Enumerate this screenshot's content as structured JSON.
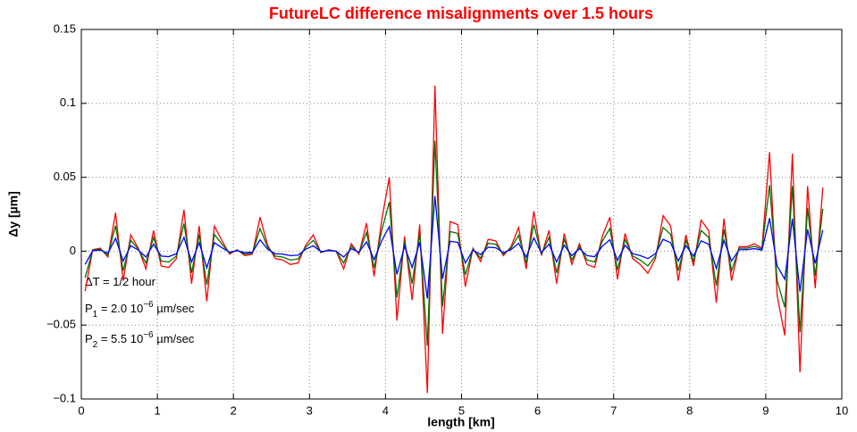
{
  "chart_data": {
    "type": "line",
    "title": "FutureLC difference misalignments over 1.5 hours",
    "xlabel": "length [km]",
    "ylabel": "Δy [µm]",
    "annotations": [
      {
        "text": "ΔT = 1/2 hour"
      },
      {
        "text": "P",
        "sub": "1",
        "mid": " = 2.0 10",
        "sup": "−6",
        "end": " µm/sec"
      },
      {
        "text": "P",
        "sub": "2",
        "mid": " = 5.5 10",
        "sup": "−6",
        "end": " µm/sec"
      }
    ],
    "xlim": [
      0,
      10
    ],
    "ylim": [
      -0.1,
      0.15
    ],
    "xticks": [
      0,
      1,
      2,
      3,
      4,
      5,
      6,
      7,
      8,
      9,
      10
    ],
    "yticks": [
      {
        "value": -0.1,
        "label": "−0.1"
      },
      {
        "value": -0.05,
        "label": "−0.05"
      },
      0,
      0.05,
      0.1,
      0.15
    ],
    "grid": true,
    "x": [
      0.05,
      0.15,
      0.25,
      0.35,
      0.45,
      0.55,
      0.65,
      0.75,
      0.85,
      0.95,
      1.05,
      1.15,
      1.25,
      1.35,
      1.45,
      1.55,
      1.65,
      1.75,
      1.85,
      1.95,
      2.05,
      2.15,
      2.25,
      2.35,
      2.45,
      2.55,
      2.65,
      2.75,
      2.85,
      2.95,
      3.05,
      3.15,
      3.25,
      3.35,
      3.45,
      3.55,
      3.65,
      3.75,
      3.85,
      3.95,
      4.05,
      4.15,
      4.25,
      4.35,
      4.45,
      4.55,
      4.65,
      4.75,
      4.85,
      4.95,
      5.05,
      5.15,
      5.25,
      5.35,
      5.45,
      5.55,
      5.65,
      5.75,
      5.85,
      5.95,
      6.05,
      6.15,
      6.25,
      6.35,
      6.45,
      6.55,
      6.65,
      6.75,
      6.85,
      6.95,
      7.05,
      7.15,
      7.25,
      7.35,
      7.45,
      7.55,
      7.65,
      7.75,
      7.85,
      7.95,
      8.05,
      8.15,
      8.25,
      8.35,
      8.45,
      8.55,
      8.65,
      8.75,
      8.85,
      8.95,
      9.05,
      9.15,
      9.25,
      9.35,
      9.45,
      9.55,
      9.65,
      9.75
    ],
    "series": [
      {
        "color": "#ff0000",
        "values": [
          -0.027,
          0.001,
          0.002,
          -0.004,
          0.026,
          -0.02,
          0.011,
          0.002,
          -0.012,
          0.014,
          -0.01,
          -0.011,
          -0.005,
          0.028,
          -0.022,
          0.017,
          -0.034,
          0.017,
          0.007,
          -0.002,
          0.001,
          -0.003,
          -0.002,
          0.023,
          0.004,
          -0.005,
          -0.006,
          -0.009,
          -0.008,
          0.004,
          0.011,
          -0.001,
          0.001,
          0,
          -0.012,
          0.005,
          -0.002,
          0.019,
          -0.017,
          0.021,
          0.05,
          -0.047,
          0.01,
          -0.033,
          0.018,
          -0.096,
          0.112,
          -0.056,
          0.02,
          0.018,
          -0.024,
          0.002,
          -0.007,
          0.008,
          0.007,
          -0.003,
          0.003,
          0.016,
          -0.012,
          0.027,
          -0.003,
          0.014,
          -0.022,
          0.012,
          -0.009,
          0.005,
          -0.009,
          -0.011,
          0.01,
          0.023,
          -0.019,
          0.012,
          -0.005,
          -0.009,
          -0.015,
          -0.005,
          0.024,
          0.017,
          -0.02,
          0.011,
          -0.01,
          0.021,
          0.014,
          -0.035,
          0.022,
          -0.02,
          0.003,
          0.003,
          0.005,
          0.002,
          0.067,
          -0.03,
          -0.057,
          0.066,
          -0.082,
          0.044,
          -0.025,
          0.043
        ]
      },
      {
        "color": "#007000",
        "values": [
          -0.018,
          0.0007,
          0.0013,
          -0.0027,
          0.0173,
          -0.0133,
          0.0073,
          0.0013,
          -0.008,
          0.0093,
          -0.0067,
          -0.0073,
          -0.0033,
          0.0187,
          -0.0147,
          0.0113,
          -0.0227,
          0.0113,
          0.0047,
          -0.0013,
          0.0007,
          -0.002,
          -0.0013,
          0.0153,
          0.0027,
          -0.0033,
          -0.004,
          -0.006,
          -0.0053,
          0.0027,
          0.0073,
          -0.0007,
          0.0007,
          0,
          -0.008,
          0.0033,
          -0.0013,
          0.0127,
          -0.0113,
          0.014,
          0.0333,
          -0.0313,
          0.0067,
          -0.022,
          0.012,
          -0.064,
          0.0747,
          -0.0373,
          0.0133,
          0.012,
          -0.016,
          0.0013,
          -0.0047,
          0.0053,
          0.0047,
          -0.002,
          0.002,
          0.0107,
          -0.008,
          0.018,
          -0.002,
          0.0093,
          -0.0147,
          0.008,
          -0.006,
          0.0033,
          -0.006,
          -0.0073,
          0.0067,
          0.0153,
          -0.0127,
          0.008,
          -0.0033,
          -0.006,
          -0.01,
          -0.0033,
          0.016,
          0.0113,
          -0.0133,
          0.0073,
          -0.0067,
          0.014,
          0.0093,
          -0.0233,
          0.0147,
          -0.0133,
          0.002,
          0.002,
          0.0033,
          0.0013,
          0.0447,
          -0.02,
          -0.038,
          0.044,
          -0.0547,
          0.0293,
          -0.0167,
          0.0287
        ]
      },
      {
        "color": "#0000ff",
        "values": [
          -0.009,
          0.0003,
          0.0007,
          -0.0013,
          0.0087,
          -0.0067,
          0.0037,
          0.0007,
          -0.004,
          0.0047,
          -0.0033,
          -0.0037,
          -0.0017,
          0.0093,
          -0.0073,
          0.0057,
          -0.0113,
          0.0057,
          0.0023,
          -0.0007,
          0.0003,
          -0.001,
          -0.0007,
          0.0077,
          0.0013,
          -0.0017,
          -0.002,
          -0.003,
          -0.0027,
          0.0013,
          0.0037,
          -0.0003,
          0.0003,
          0,
          -0.004,
          0.0017,
          -0.0007,
          0.0063,
          -0.0057,
          0.007,
          0.0167,
          -0.0157,
          0.0033,
          -0.011,
          0.006,
          -0.032,
          0.0373,
          -0.0187,
          0.0067,
          0.006,
          -0.008,
          0.0007,
          -0.0023,
          0.0027,
          0.0023,
          -0.001,
          0.001,
          0.0053,
          -0.004,
          0.009,
          -0.001,
          0.0047,
          -0.0073,
          0.004,
          -0.003,
          0.0017,
          -0.003,
          -0.0037,
          0.0033,
          0.0077,
          -0.0063,
          0.004,
          -0.0017,
          -0.003,
          -0.005,
          -0.0017,
          0.008,
          0.0057,
          -0.0067,
          0.0037,
          -0.0033,
          0.007,
          0.0047,
          -0.0117,
          0.0073,
          -0.0067,
          0.001,
          0.001,
          0.0017,
          0.0007,
          0.0223,
          -0.01,
          -0.019,
          0.022,
          -0.0273,
          0.0147,
          -0.0083,
          0.0143
        ]
      }
    ]
  }
}
